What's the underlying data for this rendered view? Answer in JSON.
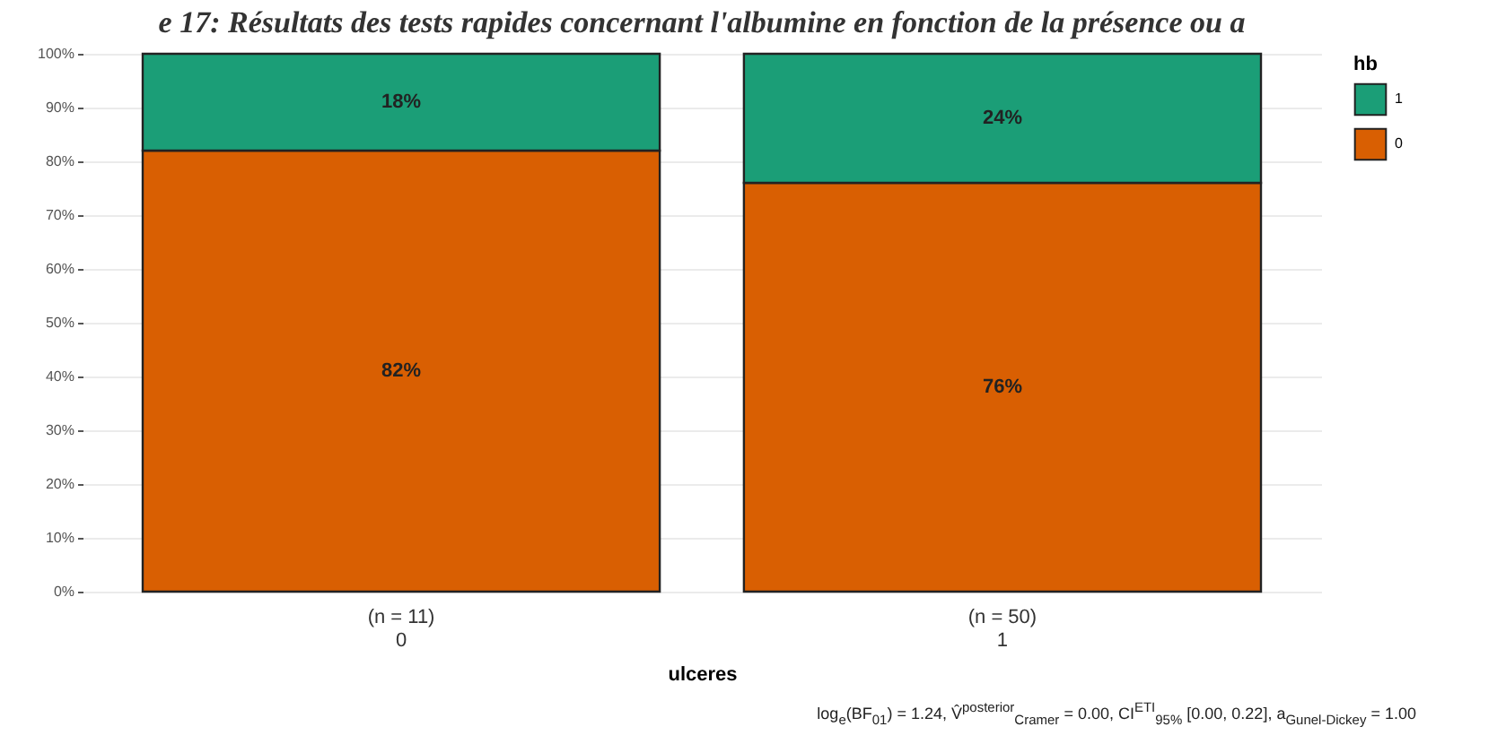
{
  "chart_data": {
    "type": "bar",
    "title": "e 17: Résultats des tests rapides concernant l'albumine en fonction de la présence ou a",
    "categories": [
      "0",
      "1"
    ],
    "xlabel": "ulceres",
    "legend_title": "hb",
    "stacked": true,
    "series": [
      {
        "name": "0",
        "color": "#d95f02",
        "values": [
          82,
          76
        ],
        "value_labels": [
          "82%",
          "76%"
        ]
      },
      {
        "name": "1",
        "color": "#1b9e77",
        "values": [
          18,
          24
        ],
        "value_labels": [
          "18%",
          "24%"
        ]
      }
    ],
    "ylim": [
      0,
      100
    ],
    "yticks": [
      {
        "value": 0,
        "label": "0%"
      },
      {
        "value": 10,
        "label": "10%"
      },
      {
        "value": 20,
        "label": "20%"
      },
      {
        "value": 30,
        "label": "30%"
      },
      {
        "value": 40,
        "label": "40%"
      },
      {
        "value": 50,
        "label": "50%"
      },
      {
        "value": 60,
        "label": "60%"
      },
      {
        "value": 70,
        "label": "70%"
      },
      {
        "value": 80,
        "label": "80%"
      },
      {
        "value": 90,
        "label": "90%"
      },
      {
        "value": 100,
        "label": "100%"
      }
    ],
    "annotations": [
      "(n = 11)",
      "(n = 50)",
      "log$_{e}$(BF$_{01}$) = 1.24, V̂$^{posterior}$$_{Cramer}$ = 0.00, CI$^{ETI}$$_{95%}$ [0.00, 0.22], a$_{Gunel-Dickey}$ = 1.00"
    ],
    "grid": "y",
    "legend": "right"
  }
}
